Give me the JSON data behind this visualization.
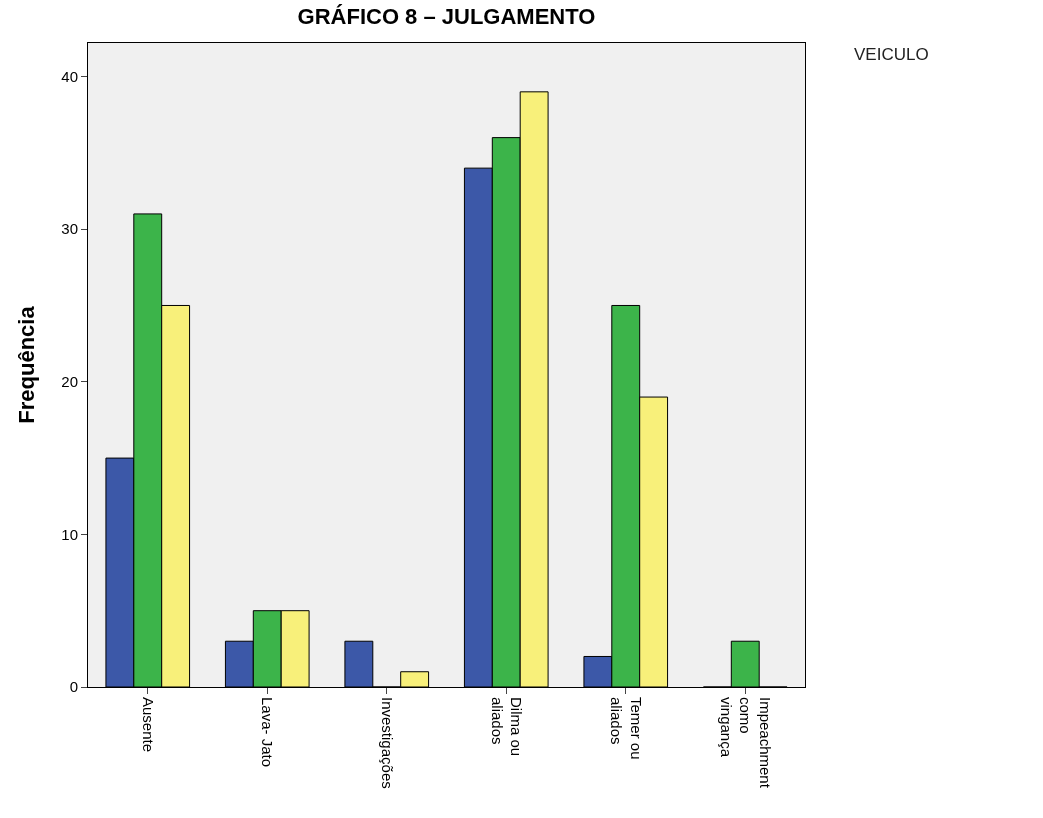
{
  "chart_data": {
    "type": "bar",
    "title": "GRÁFICO 8 – JULGAMENTO",
    "ylabel": "Frequência",
    "legend_title": "VEICULO",
    "categories": [
      "Ausente",
      "Lava- Jato",
      "Investigações",
      "Dilma ou aliados",
      "Temer ou aliados",
      "Impeachment como vingança"
    ],
    "series": [
      {
        "color": "#3c58a8",
        "values": [
          15,
          3,
          3,
          34,
          2,
          0
        ]
      },
      {
        "color": "#3cb44a",
        "values": [
          31,
          5,
          0,
          36,
          25,
          3
        ]
      },
      {
        "color": "#f8f07a",
        "values": [
          25,
          5,
          1,
          39,
          19,
          0
        ]
      }
    ],
    "ylim": [
      0,
      42.2
    ],
    "yticks": [
      0,
      10,
      20,
      30,
      40
    ],
    "grid": false
  }
}
